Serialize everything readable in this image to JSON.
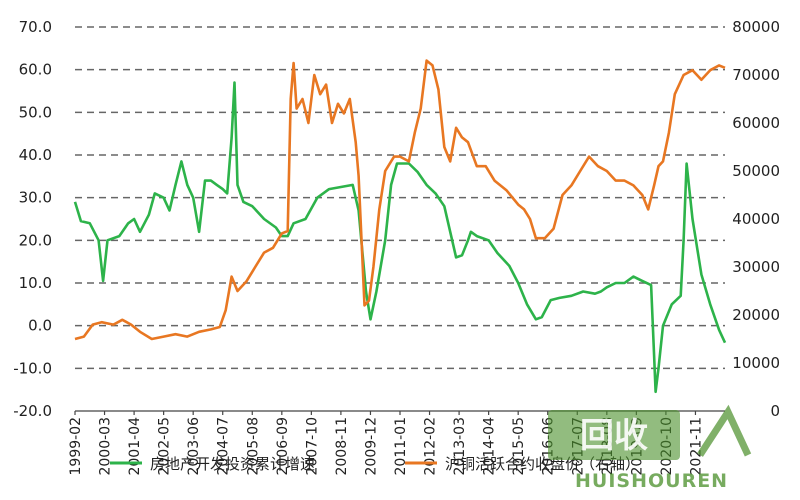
{
  "chart_data": {
    "type": "line",
    "title": "",
    "xlabel": "",
    "y_left": {
      "min": -20,
      "max": 70,
      "step": 10,
      "tick_labels": [
        "-20.0",
        "-10.0",
        "0.0",
        "10.0",
        "20.0",
        "30.0",
        "40.0",
        "50.0",
        "60.0",
        "70.0"
      ]
    },
    "y_right": {
      "min": 0,
      "max": 80000,
      "step": 10000,
      "tick_labels": [
        "0",
        "10000",
        "20000",
        "30000",
        "40000",
        "50000",
        "60000",
        "70000",
        "80000"
      ]
    },
    "x_tick_labels": [
      "1999-02",
      "2000-03",
      "2001-04",
      "2002-05",
      "2003-06",
      "2004-07",
      "2005-08",
      "2006-09",
      "2007-10",
      "2008-11",
      "2009-12",
      "2011-01",
      "2012-02",
      "2013-03",
      "2014-04",
      "2015-05",
      "2016-06",
      "2017-07",
      "2018-08",
      "2019-09",
      "2020-10",
      "2021-11"
    ],
    "grid": true,
    "legend_position": "bottom",
    "series": [
      {
        "name": "房地产开发投资累计增速",
        "axis": "left",
        "color": "#2db34a",
        "points": [
          [
            0,
            29
          ],
          [
            0.2,
            24.5
          ],
          [
            0.5,
            24
          ],
          [
            0.8,
            20
          ],
          [
            0.95,
            10.5
          ],
          [
            1.1,
            20
          ],
          [
            1.5,
            21
          ],
          [
            1.8,
            24
          ],
          [
            2.0,
            25
          ],
          [
            2.2,
            22
          ],
          [
            2.5,
            26
          ],
          [
            2.7,
            31
          ],
          [
            3.0,
            30
          ],
          [
            3.2,
            27
          ],
          [
            3.4,
            33
          ],
          [
            3.6,
            38.5
          ],
          [
            3.8,
            33
          ],
          [
            4.0,
            30
          ],
          [
            4.2,
            22
          ],
          [
            4.4,
            34
          ],
          [
            4.6,
            34
          ],
          [
            4.8,
            33
          ],
          [
            5.0,
            32
          ],
          [
            5.15,
            31
          ],
          [
            5.3,
            44
          ],
          [
            5.4,
            57
          ],
          [
            5.5,
            33
          ],
          [
            5.7,
            29
          ],
          [
            6.0,
            28
          ],
          [
            6.4,
            25
          ],
          [
            6.8,
            23
          ],
          [
            7.0,
            21
          ],
          [
            7.2,
            21
          ],
          [
            7.4,
            24
          ],
          [
            7.8,
            25
          ],
          [
            8.2,
            30
          ],
          [
            8.6,
            32
          ],
          [
            9.0,
            32.5
          ],
          [
            9.4,
            33
          ],
          [
            9.6,
            27
          ],
          [
            9.85,
            8
          ],
          [
            10.0,
            1.5
          ],
          [
            10.2,
            8
          ],
          [
            10.5,
            20
          ],
          [
            10.7,
            33
          ],
          [
            10.9,
            38
          ],
          [
            11.3,
            38
          ],
          [
            11.6,
            36
          ],
          [
            11.9,
            33
          ],
          [
            12.2,
            31
          ],
          [
            12.5,
            28
          ],
          [
            12.7,
            22
          ],
          [
            12.9,
            16
          ],
          [
            13.1,
            16.5
          ],
          [
            13.3,
            20
          ],
          [
            13.4,
            22
          ],
          [
            13.6,
            21
          ],
          [
            14.0,
            20
          ],
          [
            14.3,
            17
          ],
          [
            14.7,
            14
          ],
          [
            15.0,
            10
          ],
          [
            15.3,
            5
          ],
          [
            15.6,
            1.5
          ],
          [
            15.8,
            2
          ],
          [
            16.1,
            6
          ],
          [
            16.4,
            6.5
          ],
          [
            16.8,
            7
          ],
          [
            17.2,
            8
          ],
          [
            17.6,
            7.5
          ],
          [
            17.8,
            8
          ],
          [
            18.0,
            9
          ],
          [
            18.3,
            10
          ],
          [
            18.6,
            10
          ],
          [
            18.9,
            11.5
          ],
          [
            19.2,
            10.5
          ],
          [
            19.5,
            9.5
          ],
          [
            19.6,
            -7
          ],
          [
            19.65,
            -15.5
          ],
          [
            19.75,
            -10
          ],
          [
            19.9,
            0
          ],
          [
            20.2,
            5
          ],
          [
            20.5,
            7
          ],
          [
            20.6,
            20
          ],
          [
            20.7,
            38
          ],
          [
            20.9,
            25
          ],
          [
            21.2,
            12
          ],
          [
            21.5,
            5
          ],
          [
            21.8,
            -1
          ],
          [
            22.0,
            -4
          ]
        ]
      },
      {
        "name": "沪铜活跃合约收盘价（右轴）",
        "axis": "right",
        "color": "#e87722",
        "points": [
          [
            0,
            15000
          ],
          [
            0.3,
            15500
          ],
          [
            0.6,
            18000
          ],
          [
            0.9,
            18500
          ],
          [
            1.3,
            18000
          ],
          [
            1.6,
            19000
          ],
          [
            1.9,
            18000
          ],
          [
            2.2,
            16500
          ],
          [
            2.6,
            15000
          ],
          [
            3.0,
            15500
          ],
          [
            3.4,
            16000
          ],
          [
            3.8,
            15500
          ],
          [
            4.2,
            16500
          ],
          [
            4.6,
            17000
          ],
          [
            4.9,
            17500
          ],
          [
            5.1,
            21000
          ],
          [
            5.3,
            28000
          ],
          [
            5.5,
            25000
          ],
          [
            5.8,
            27000
          ],
          [
            6.1,
            30000
          ],
          [
            6.4,
            33000
          ],
          [
            6.7,
            34000
          ],
          [
            7.0,
            37000
          ],
          [
            7.2,
            37500
          ],
          [
            7.3,
            65000
          ],
          [
            7.4,
            72500
          ],
          [
            7.5,
            63000
          ],
          [
            7.7,
            65000
          ],
          [
            7.9,
            60000
          ],
          [
            8.1,
            70000
          ],
          [
            8.3,
            66000
          ],
          [
            8.5,
            68000
          ],
          [
            8.7,
            60000
          ],
          [
            8.9,
            64000
          ],
          [
            9.1,
            62000
          ],
          [
            9.3,
            65000
          ],
          [
            9.5,
            56000
          ],
          [
            9.6,
            49000
          ],
          [
            9.8,
            22000
          ],
          [
            9.95,
            23000
          ],
          [
            10.1,
            30000
          ],
          [
            10.3,
            42000
          ],
          [
            10.5,
            50000
          ],
          [
            10.8,
            53000
          ],
          [
            11.0,
            53000
          ],
          [
            11.3,
            52000
          ],
          [
            11.5,
            58000
          ],
          [
            11.7,
            63000
          ],
          [
            11.9,
            73000
          ],
          [
            12.1,
            72000
          ],
          [
            12.3,
            67000
          ],
          [
            12.5,
            55000
          ],
          [
            12.7,
            52000
          ],
          [
            12.9,
            59000
          ],
          [
            13.1,
            57000
          ],
          [
            13.3,
            56000
          ],
          [
            13.6,
            51000
          ],
          [
            13.9,
            51000
          ],
          [
            14.2,
            48000
          ],
          [
            14.6,
            46000
          ],
          [
            15.0,
            43000
          ],
          [
            15.2,
            42000
          ],
          [
            15.4,
            40000
          ],
          [
            15.6,
            36000
          ],
          [
            15.9,
            36000
          ],
          [
            16.2,
            38000
          ],
          [
            16.5,
            45000
          ],
          [
            16.8,
            47000
          ],
          [
            17.1,
            50000
          ],
          [
            17.4,
            53000
          ],
          [
            17.7,
            51000
          ],
          [
            18.0,
            50000
          ],
          [
            18.3,
            48000
          ],
          [
            18.6,
            48000
          ],
          [
            18.9,
            47000
          ],
          [
            19.2,
            45000
          ],
          [
            19.4,
            42000
          ],
          [
            19.6,
            47000
          ],
          [
            19.75,
            51000
          ],
          [
            19.9,
            52000
          ],
          [
            20.1,
            58000
          ],
          [
            20.3,
            66000
          ],
          [
            20.6,
            70000
          ],
          [
            20.9,
            71000
          ],
          [
            21.2,
            69000
          ],
          [
            21.5,
            71000
          ],
          [
            21.8,
            72000
          ],
          [
            22.0,
            71500
          ]
        ]
      }
    ]
  },
  "watermark": {
    "box_text": "回收",
    "text": "HUISHOUREN"
  },
  "colors": {
    "real_estate": "#2db34a",
    "copper": "#e87722",
    "watermark": "#4a8f2a"
  }
}
